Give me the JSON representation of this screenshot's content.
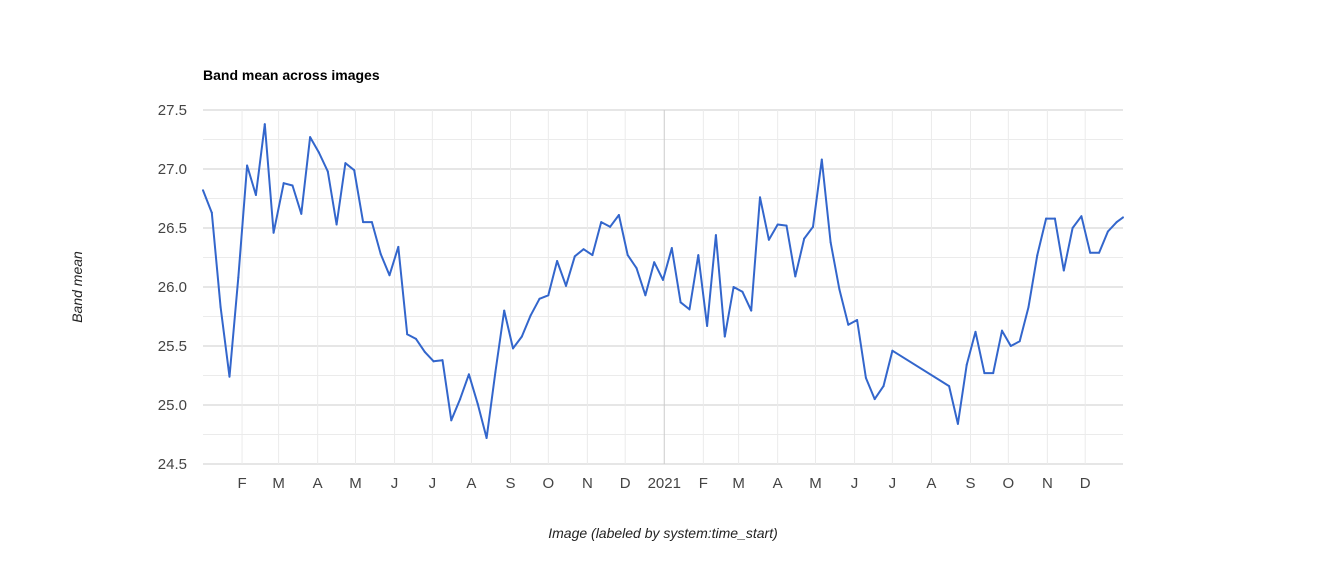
{
  "chart_data": {
    "type": "line",
    "title": "Band mean across images",
    "xlabel": "Image (labeled by system:time_start)",
    "ylabel": "Band mean",
    "ylim": [
      24.5,
      27.5
    ],
    "y_ticks": [
      "27.5",
      "27.0",
      "26.5",
      "26.0",
      "25.5",
      "25.0",
      "24.5"
    ],
    "x_tick_labels": [
      "F",
      "M",
      "A",
      "M",
      "J",
      "J",
      "A",
      "S",
      "O",
      "N",
      "D",
      "2021",
      "F",
      "M",
      "A",
      "M",
      "J",
      "J",
      "A",
      "S",
      "O",
      "N",
      "D"
    ],
    "xlim": [
      "2020-01-01",
      "2021-12-31"
    ],
    "grid": true,
    "legend": "none",
    "line_color": "#3366cc",
    "series": [
      {
        "x": [
          "2020-01-01",
          "2020-01-08",
          "2020-01-15",
          "2020-01-22",
          "2020-01-29",
          "2020-02-05",
          "2020-02-12",
          "2020-02-19",
          "2020-02-26",
          "2020-03-05",
          "2020-03-12",
          "2020-03-19",
          "2020-03-26",
          "2020-04-02",
          "2020-04-09",
          "2020-04-16",
          "2020-04-23",
          "2020-04-30",
          "2020-05-07",
          "2020-05-14",
          "2020-05-21",
          "2020-05-28",
          "2020-06-04",
          "2020-06-11",
          "2020-06-18",
          "2020-06-25",
          "2020-07-02",
          "2020-07-09",
          "2020-07-16",
          "2020-07-23",
          "2020-07-30",
          "2020-08-06",
          "2020-08-13",
          "2020-08-20",
          "2020-08-27",
          "2020-09-03",
          "2020-09-10",
          "2020-09-17",
          "2020-09-24",
          "2020-10-01",
          "2020-10-08",
          "2020-10-15",
          "2020-10-22",
          "2020-10-29",
          "2020-11-05",
          "2020-11-12",
          "2020-11-19",
          "2020-11-26",
          "2020-12-03",
          "2020-12-10",
          "2020-12-17",
          "2020-12-24",
          "2020-12-31",
          "2021-01-07",
          "2021-01-14",
          "2021-01-21",
          "2021-01-28",
          "2021-02-04",
          "2021-02-11",
          "2021-02-18",
          "2021-02-25",
          "2021-03-04",
          "2021-03-11",
          "2021-03-18",
          "2021-03-25",
          "2021-04-01",
          "2021-04-08",
          "2021-04-15",
          "2021-04-22",
          "2021-04-29",
          "2021-05-06",
          "2021-05-13",
          "2021-05-20",
          "2021-05-27",
          "2021-06-03",
          "2021-06-10",
          "2021-06-17",
          "2021-06-24",
          "2021-07-01",
          "2021-08-15",
          "2021-08-22",
          "2021-08-29",
          "2021-09-05",
          "2021-09-12",
          "2021-09-19",
          "2021-09-26",
          "2021-10-03",
          "2021-10-10",
          "2021-10-17",
          "2021-10-24",
          "2021-10-31",
          "2021-11-07",
          "2021-11-14",
          "2021-11-21",
          "2021-11-28",
          "2021-12-05",
          "2021-12-12",
          "2021-12-19",
          "2021-12-26",
          "2021-12-31"
        ],
        "values": [
          26.82,
          26.63,
          25.83,
          25.24,
          26.08,
          27.03,
          26.78,
          27.38,
          26.46,
          26.88,
          26.86,
          26.62,
          27.27,
          27.14,
          26.98,
          26.53,
          27.05,
          26.99,
          26.55,
          26.55,
          26.28,
          26.1,
          26.34,
          25.6,
          25.56,
          25.45,
          25.37,
          25.38,
          24.87,
          25.05,
          25.26,
          25.01,
          24.72,
          25.28,
          25.8,
          25.48,
          25.58,
          25.76,
          25.9,
          25.93,
          26.22,
          26.01,
          26.26,
          26.32,
          26.27,
          26.55,
          26.51,
          26.61,
          26.27,
          26.16,
          25.93,
          26.21,
          26.06,
          26.33,
          25.87,
          25.81,
          26.27,
          25.67,
          26.44,
          25.58,
          26.0,
          25.96,
          25.8,
          26.76,
          26.4,
          26.53,
          26.52,
          26.09,
          26.41,
          26.51,
          27.08,
          26.38,
          25.98,
          25.68,
          25.72,
          25.23,
          25.05,
          25.16,
          25.46,
          25.16,
          24.84,
          25.34,
          25.62,
          25.27,
          25.27,
          25.63,
          25.5,
          25.54,
          25.83,
          26.27,
          26.58,
          26.58,
          26.14,
          26.5,
          26.6,
          26.29,
          26.29,
          26.47,
          26.55,
          26.59
        ]
      }
    ]
  }
}
